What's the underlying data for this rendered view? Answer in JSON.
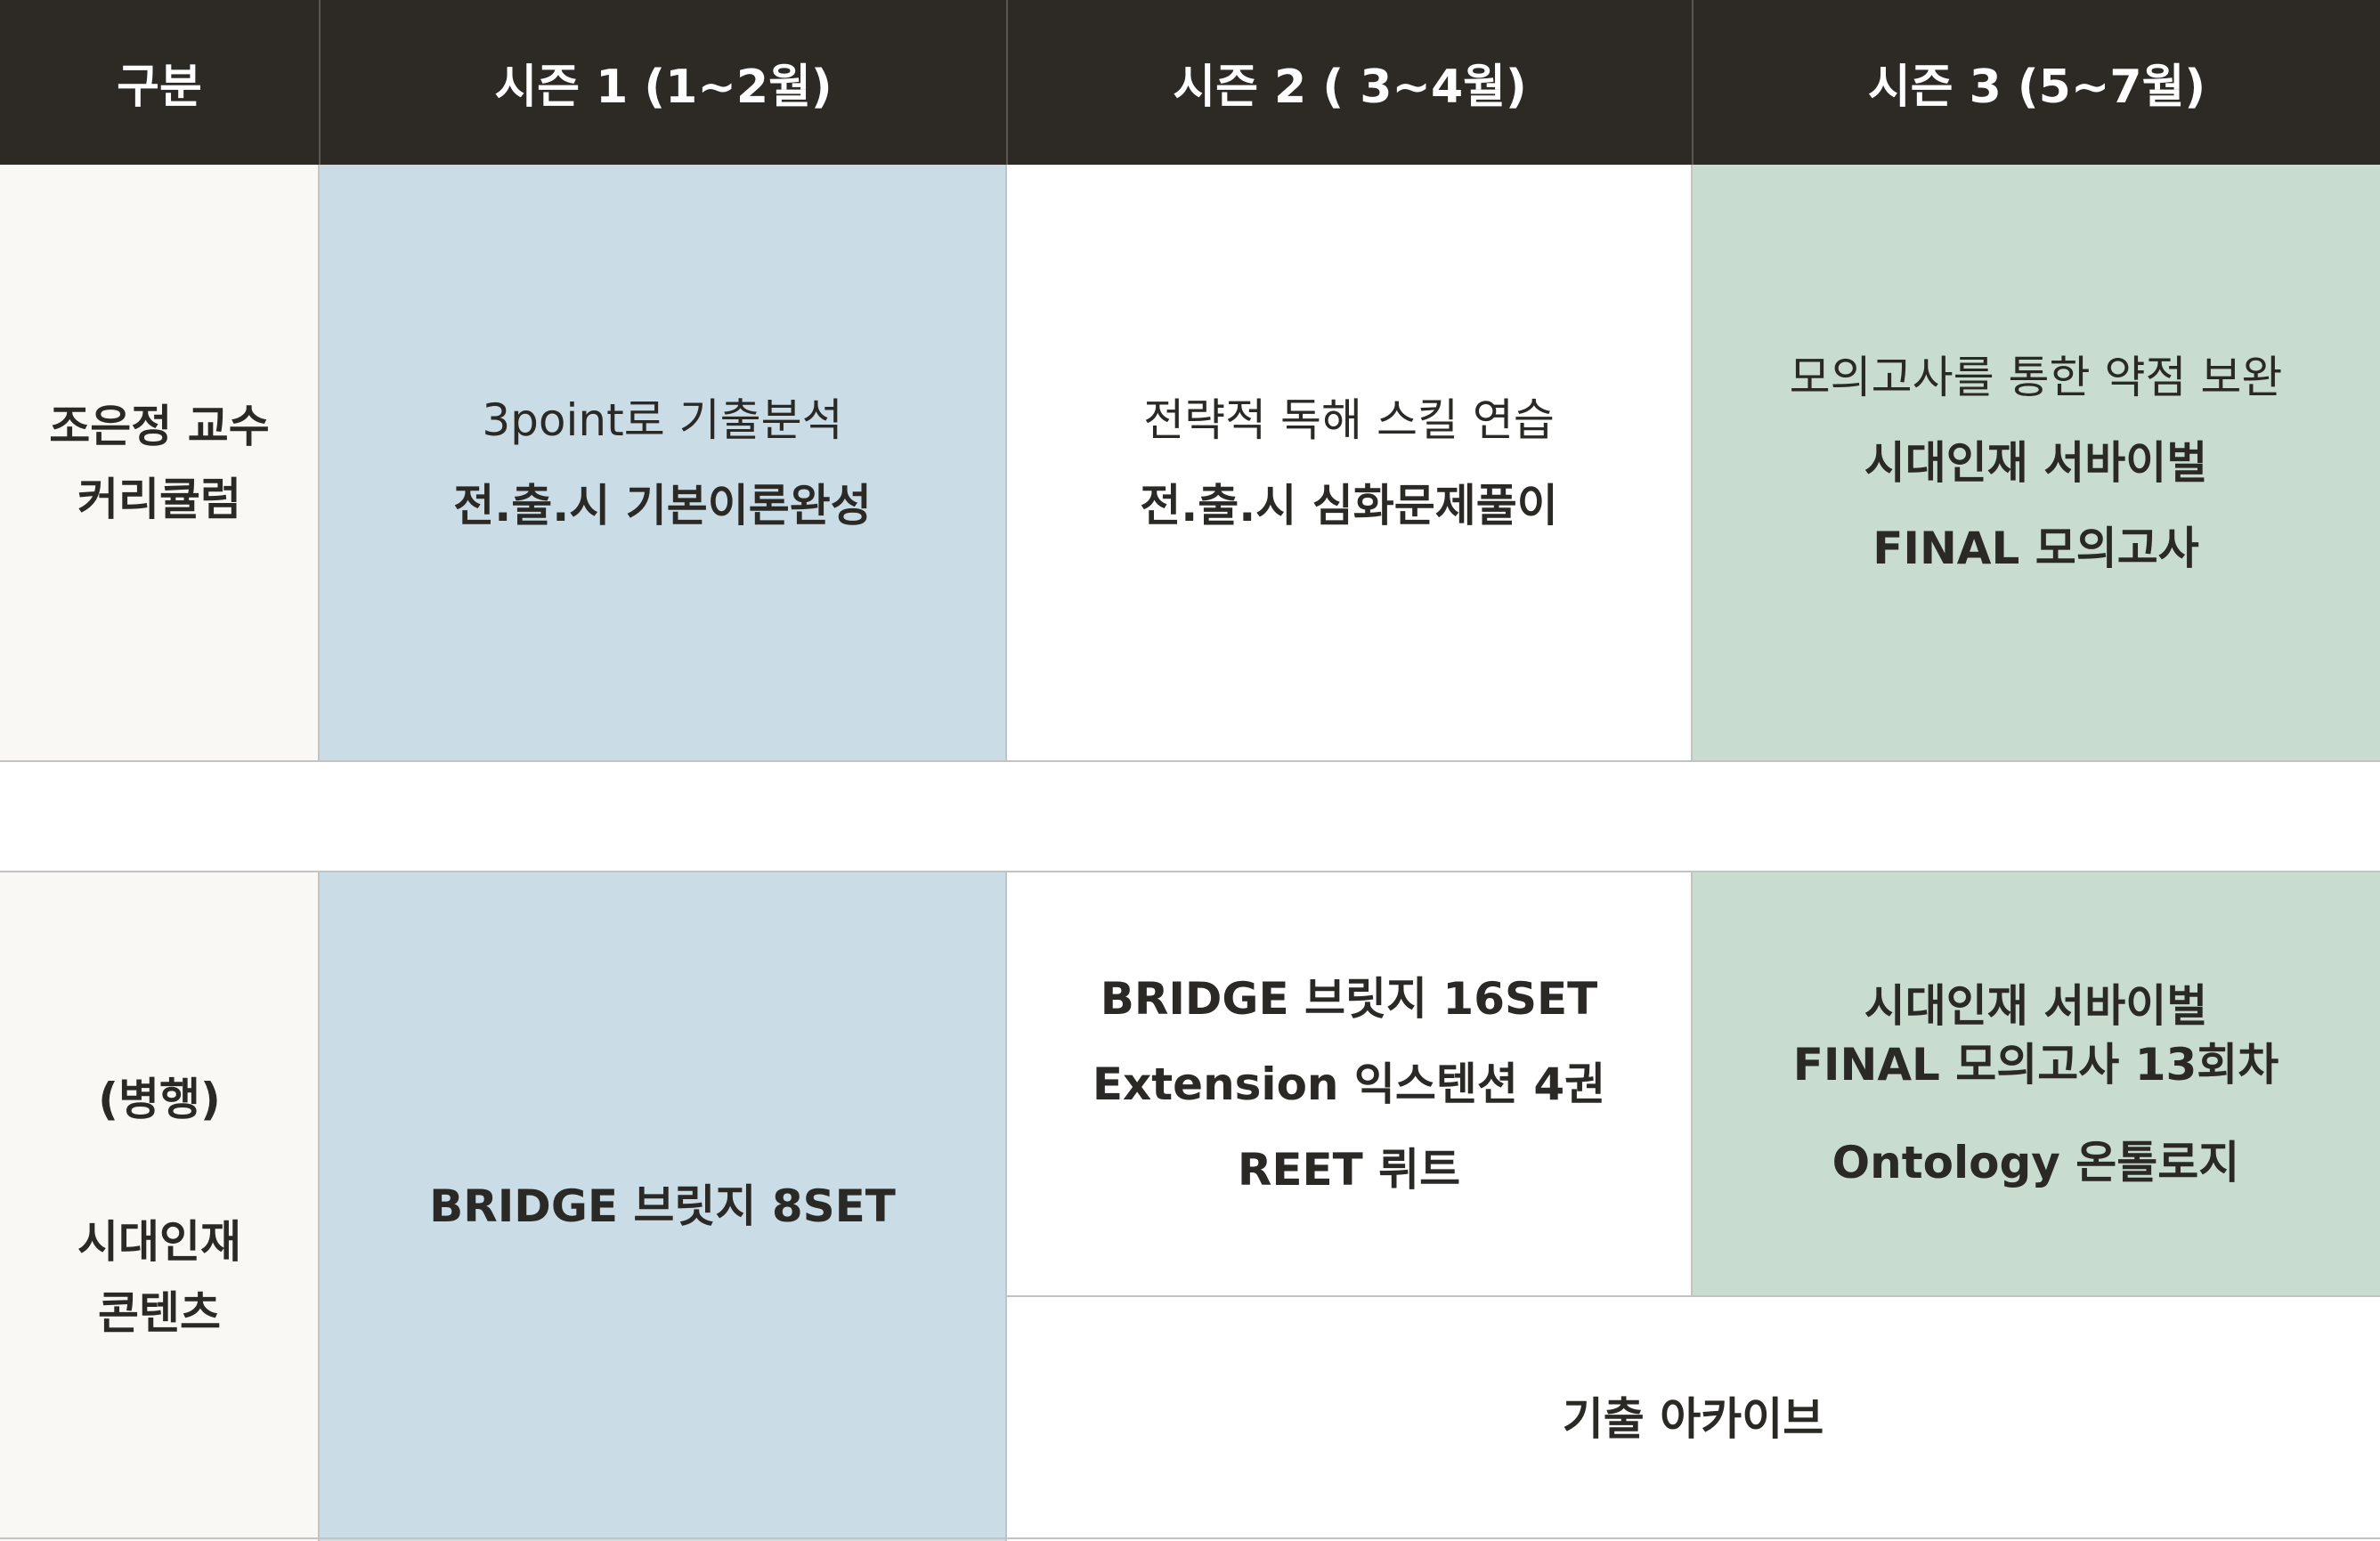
{
  "header": {
    "col0": "구분",
    "col1": "시즌 1 (1~2월)",
    "col2": "시즌 2 ( 3~4월)",
    "col3": "시즌 3 (5~7월)"
  },
  "row1": {
    "label": [
      "조은정 교수",
      "커리큘럼"
    ],
    "season1": [
      "3point로 기출분석",
      "전.출.시 기본이론완성"
    ],
    "season2": [
      "전략적 독해 스킬 연습",
      "전.출.시 심화문제풀이"
    ],
    "season3": [
      "모의고사를 통한 약점 보완",
      "시대인재 서바이벌",
      "FINAL 모의고사"
    ]
  },
  "row2": {
    "label": [
      "(병행)",
      "시대인재",
      "콘텐츠"
    ],
    "season1": "BRIDGE 브릿지 8SET",
    "season2": [
      "BRIDGE 브릿지 16SET",
      "Extension 익스텐션 4권",
      "REET 뤼트"
    ],
    "season3": [
      "시대인재 서바이벌",
      "FINAL 모의고사 13회차",
      "Ontology 온톨로지"
    ],
    "season23_bottom": "기출 아카이브"
  },
  "colors": {
    "header_bg": "#2d2a26",
    "label_bg": "#f9f8f4",
    "season1_bg": "#cadce6",
    "season2_bg": "#ffffff",
    "season3_bg": "#c8ddcf"
  }
}
